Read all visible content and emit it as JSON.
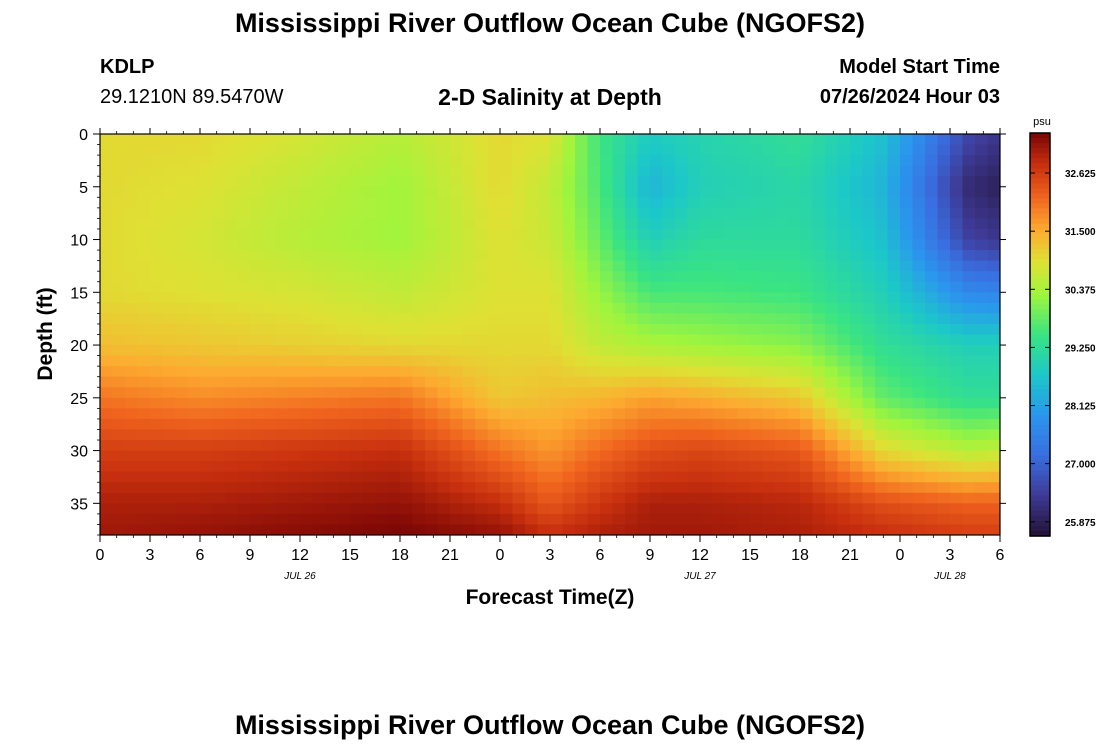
{
  "header": {
    "title": "Mississippi River Outflow Ocean Cube (NGOFS2)",
    "station": "KDLP",
    "coords": "29.1210N  89.5470W",
    "subtitle": "2-D Salinity at Depth",
    "model_start_label": "Model Start Time",
    "model_start_value": "07/26/2024 Hour 03"
  },
  "footer": {
    "title_repeat": "Mississippi River Outflow Ocean Cube (NGOFS2)"
  },
  "chart_data": {
    "type": "heatmap",
    "title": "2-D Salinity at Depth",
    "xlabel": "Forecast Time(Z)",
    "ylabel": "Depth (ft)",
    "x_ticks": [
      "0",
      "3",
      "6",
      "9",
      "12",
      "15",
      "18",
      "21",
      "0",
      "3",
      "6",
      "9",
      "12",
      "15",
      "18",
      "21",
      "0",
      "3",
      "6"
    ],
    "date_labels": [
      {
        "label": "JUL 26",
        "hour_index": 4
      },
      {
        "label": "JUL 27",
        "hour_index": 12
      },
      {
        "label": "JUL 28",
        "hour_index": 17
      }
    ],
    "y_ticks": [
      0,
      5,
      10,
      15,
      20,
      25,
      30,
      35
    ],
    "ylim": [
      0,
      38
    ],
    "x_range_hours": [
      0,
      54
    ],
    "colorbar": {
      "unit": "psu",
      "ticks": [
        "32.625",
        "31.500",
        "30.375",
        "29.250",
        "28.125",
        "27.000",
        "25.875"
      ],
      "range": [
        25.6,
        33.4
      ]
    },
    "hours": [
      0,
      6,
      12,
      18,
      24,
      27,
      30,
      33,
      36,
      42,
      47,
      52,
      54
    ],
    "depths_ft": [
      0,
      5,
      10,
      15,
      20,
      25,
      30,
      35,
      38
    ],
    "salinity_psu": [
      [
        31.0,
        31.0,
        30.8,
        30.5,
        31.0,
        30.9,
        29.5,
        28.8,
        29.0,
        29.3,
        28.6,
        26.6,
        26.3
      ],
      [
        31.0,
        30.9,
        30.6,
        30.3,
        31.0,
        30.6,
        29.6,
        28.4,
        28.9,
        29.1,
        28.4,
        26.1,
        25.9
      ],
      [
        31.0,
        30.8,
        30.5,
        30.3,
        30.9,
        30.7,
        29.8,
        28.9,
        29.2,
        29.2,
        28.6,
        26.5,
        26.3
      ],
      [
        31.0,
        30.9,
        30.8,
        30.6,
        30.9,
        30.9,
        30.2,
        29.6,
        29.6,
        29.5,
        28.9,
        27.7,
        27.6
      ],
      [
        31.3,
        31.2,
        31.1,
        31.0,
        31.0,
        31.0,
        30.6,
        30.4,
        30.3,
        30.1,
        29.3,
        28.9,
        28.9
      ],
      [
        32.0,
        31.8,
        31.9,
        32.0,
        31.2,
        31.3,
        31.4,
        31.6,
        31.5,
        31.2,
        29.8,
        29.3,
        29.3
      ],
      [
        32.6,
        32.6,
        32.7,
        32.8,
        32.0,
        31.7,
        32.1,
        32.4,
        32.5,
        32.3,
        31.0,
        30.5,
        30.6
      ],
      [
        33.0,
        33.0,
        33.1,
        33.2,
        32.8,
        32.3,
        32.7,
        33.0,
        33.0,
        32.9,
        32.4,
        32.2,
        32.2
      ],
      [
        33.1,
        33.2,
        33.3,
        33.4,
        33.2,
        32.8,
        33.0,
        33.1,
        33.1,
        33.0,
        32.8,
        32.6,
        32.6
      ]
    ]
  }
}
